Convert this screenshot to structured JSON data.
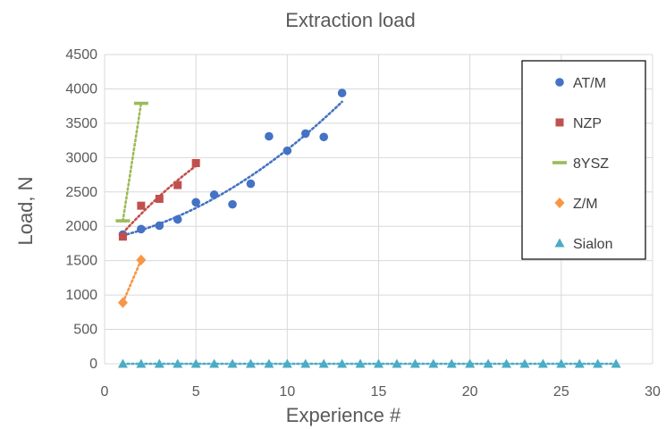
{
  "chart_data": {
    "type": "scatter",
    "title": "Extraction load",
    "xlabel": "Experience  #",
    "ylabel": "Load, N",
    "xlim": [
      0,
      30
    ],
    "ylim": [
      0,
      4500
    ],
    "xticks": [
      0,
      5,
      10,
      15,
      20,
      25,
      30
    ],
    "yticks": [
      0,
      500,
      1000,
      1500,
      2000,
      2500,
      3000,
      3500,
      4000,
      4500
    ],
    "grid": true,
    "legend_position": "top-right",
    "series": [
      {
        "name": "AT/M",
        "marker": "circle",
        "color": "#4472C4",
        "x": [
          1,
          2,
          3,
          4,
          5,
          6,
          7,
          8,
          9,
          10,
          11,
          12,
          13
        ],
        "y": [
          1880,
          1960,
          2010,
          2100,
          2350,
          2460,
          2320,
          2620,
          3310,
          3100,
          3350,
          3300,
          3940
        ],
        "trendline": true
      },
      {
        "name": "NZP",
        "marker": "square",
        "color": "#C0504D",
        "x": [
          1,
          2,
          3,
          4,
          5
        ],
        "y": [
          1850,
          2300,
          2400,
          2600,
          2920
        ],
        "trendline": true
      },
      {
        "name": "8YSZ",
        "marker": "dash",
        "color": "#9BBB59",
        "x": [
          1,
          2
        ],
        "y": [
          2080,
          3790
        ],
        "trendline": true
      },
      {
        "name": "Z/M",
        "marker": "diamond",
        "color": "#F79646",
        "x": [
          1,
          2
        ],
        "y": [
          890,
          1510
        ],
        "trendline": true
      },
      {
        "name": "Sialon",
        "marker": "triangle",
        "color": "#4BACC6",
        "x": [
          1,
          2,
          3,
          4,
          5,
          6,
          7,
          8,
          9,
          10,
          11,
          12,
          13,
          14,
          15,
          16,
          17,
          18,
          19,
          20,
          21,
          22,
          23,
          24,
          25,
          26,
          27,
          28
        ],
        "y": [
          0,
          0,
          0,
          0,
          0,
          0,
          0,
          0,
          0,
          0,
          0,
          0,
          0,
          0,
          0,
          0,
          0,
          0,
          0,
          0,
          0,
          0,
          0,
          0,
          0,
          0,
          0,
          0
        ],
        "trendline": true
      }
    ]
  }
}
